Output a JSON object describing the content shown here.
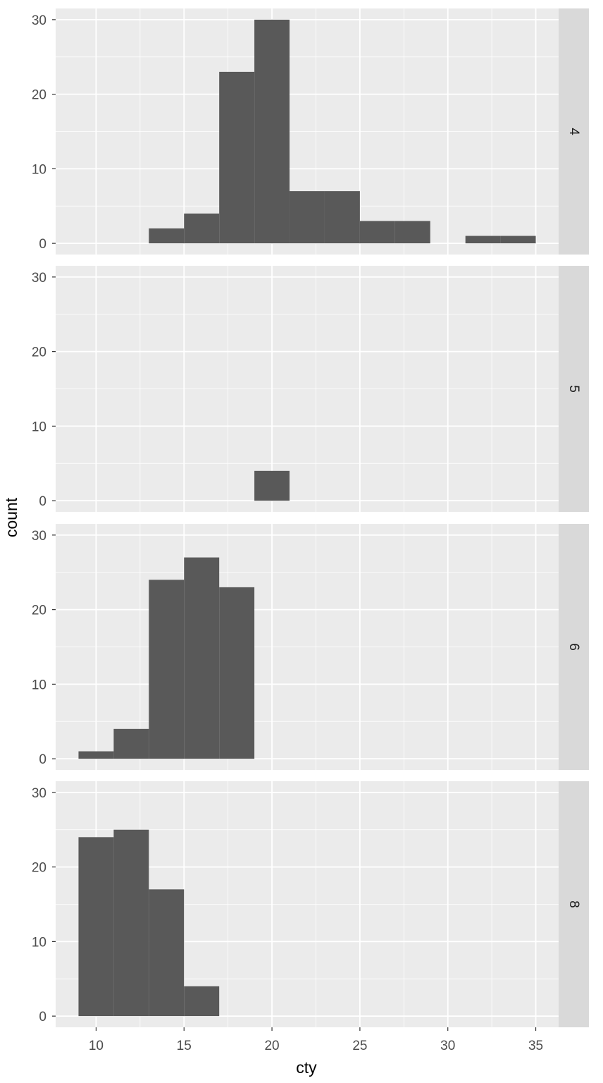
{
  "chart_data": {
    "type": "bar",
    "xlabel": "cty",
    "ylabel": "count",
    "x_ticks": [
      10,
      15,
      20,
      25,
      30,
      35
    ],
    "y_ticks": [
      0,
      10,
      20,
      30
    ],
    "xlim": [
      7.7,
      36.3
    ],
    "ylim": [
      -1.5,
      31.5
    ],
    "bin_width": 2,
    "colors": {
      "bar": "#595959",
      "panel_bg": "#ebebeb",
      "strip_bg": "#d9d9d9",
      "grid": "#ffffff"
    },
    "facets": [
      {
        "label": "4",
        "bins": [
          {
            "x": [
              13,
              15
            ],
            "count": 2
          },
          {
            "x": [
              15,
              17
            ],
            "count": 4
          },
          {
            "x": [
              17,
              19
            ],
            "count": 23
          },
          {
            "x": [
              19,
              21
            ],
            "count": 30
          },
          {
            "x": [
              21,
              23
            ],
            "count": 7
          },
          {
            "x": [
              23,
              25
            ],
            "count": 7
          },
          {
            "x": [
              25,
              27
            ],
            "count": 3
          },
          {
            "x": [
              27,
              29
            ],
            "count": 3
          },
          {
            "x": [
              31,
              33
            ],
            "count": 1
          },
          {
            "x": [
              33,
              35
            ],
            "count": 1
          }
        ]
      },
      {
        "label": "5",
        "bins": [
          {
            "x": [
              19,
              21
            ],
            "count": 4
          }
        ]
      },
      {
        "label": "6",
        "bins": [
          {
            "x": [
              9,
              11
            ],
            "count": 1
          },
          {
            "x": [
              11,
              13
            ],
            "count": 4
          },
          {
            "x": [
              13,
              15
            ],
            "count": 24
          },
          {
            "x": [
              15,
              17
            ],
            "count": 27
          },
          {
            "x": [
              17,
              19
            ],
            "count": 23
          }
        ]
      },
      {
        "label": "8",
        "bins": [
          {
            "x": [
              9,
              11
            ],
            "count": 24
          },
          {
            "x": [
              11,
              13
            ],
            "count": 25
          },
          {
            "x": [
              13,
              15
            ],
            "count": 17
          },
          {
            "x": [
              15,
              17
            ],
            "count": 4
          }
        ]
      }
    ]
  }
}
